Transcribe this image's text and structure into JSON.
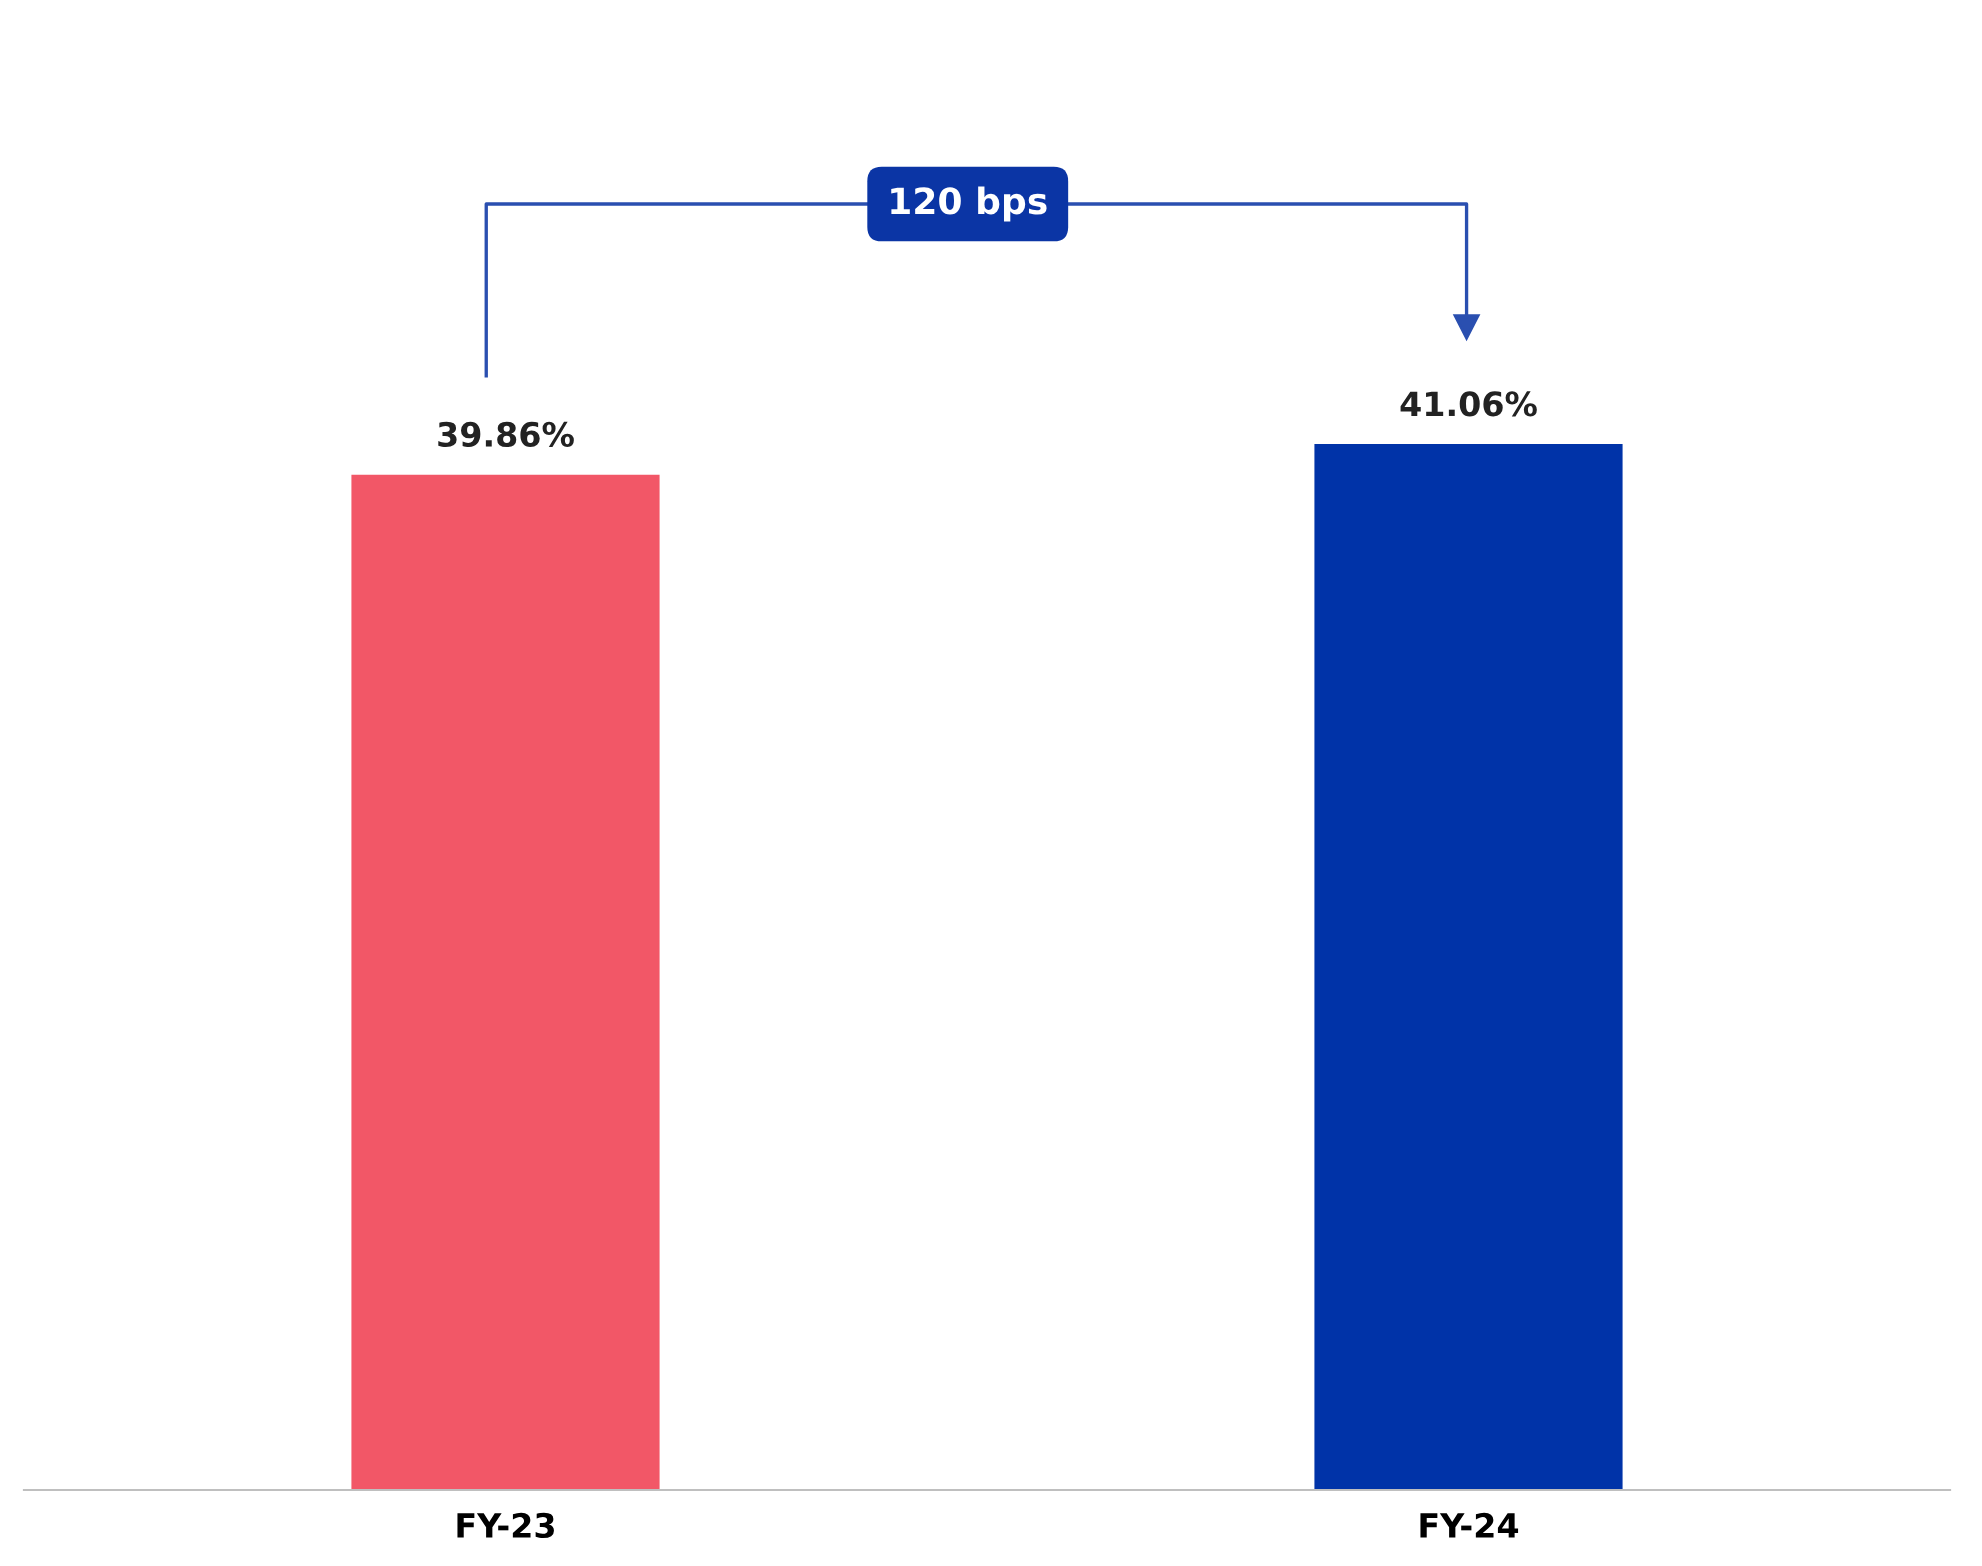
{
  "chart_data": {
    "type": "bar",
    "categories": [
      "FY-23",
      "FY-24"
    ],
    "values": [
      39.86,
      41.06
    ],
    "colors": [
      "#f25767",
      "#0033a8"
    ],
    "value_labels": [
      "39.86%",
      "41.06%"
    ],
    "annotations": [
      "120 bps"
    ],
    "grid": false,
    "legend": false
  }
}
